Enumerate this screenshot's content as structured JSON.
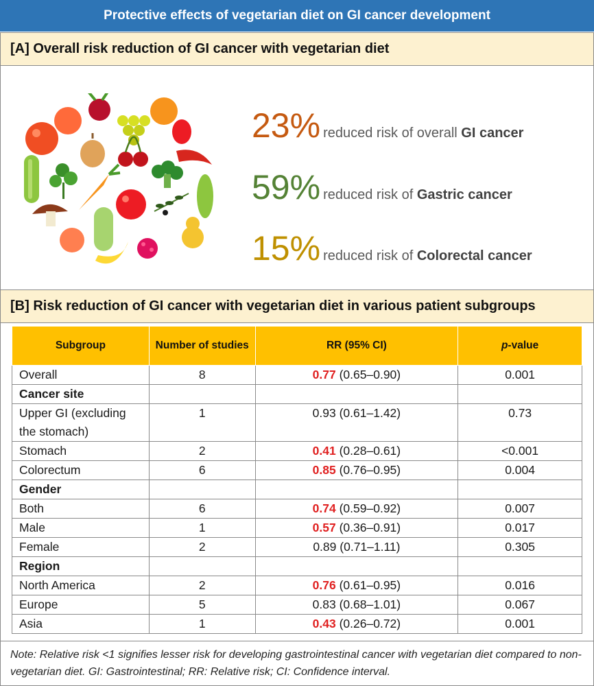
{
  "title": "Protective effects of vegetarian diet on GI cancer development",
  "section_a": {
    "heading": "[A] Overall risk reduction of GI cancer with vegetarian diet",
    "illustration_icon": "vegetables-fruits-illustration",
    "stats": [
      {
        "percent": "23%",
        "text_prefix": "reduced risk of overall ",
        "text_bold": "GI cancer",
        "color": "#c55a11"
      },
      {
        "percent": "59%",
        "text_prefix": "reduced risk of ",
        "text_bold": "Gastric cancer",
        "color": "#548235"
      },
      {
        "percent": "15%",
        "text_prefix": "reduced risk of ",
        "text_bold": "Colorectal cancer",
        "color": "#bf9000"
      }
    ]
  },
  "section_b": {
    "heading": "[B] Risk reduction of GI cancer with vegetarian diet in various patient subgroups",
    "columns": {
      "subgroup": "Subgroup",
      "studies": "Number of studies",
      "rr": "RR (95% CI)",
      "p_italic": "p",
      "p_rest": "-value"
    },
    "rows": [
      {
        "subgroup": "Overall",
        "studies": "8",
        "rr": "0.77",
        "ci": "(0.65–0.90)",
        "p": "0.001",
        "sig": true
      },
      {
        "group": "Cancer site"
      },
      {
        "subgroup": "Upper GI (excluding the stomach)",
        "studies": "1",
        "rr": "0.93",
        "ci": "(0.61–1.42)",
        "p": "0.73",
        "sig": false
      },
      {
        "subgroup": "Stomach",
        "studies": "2",
        "rr": "0.41",
        "ci": "(0.28–0.61)",
        "p": "<0.001",
        "sig": true
      },
      {
        "subgroup": "Colorectum",
        "studies": "6",
        "rr": "0.85",
        "ci": "(0.76–0.95)",
        "p": "0.004",
        "sig": true
      },
      {
        "group": "Gender"
      },
      {
        "subgroup": "Both",
        "studies": "6",
        "rr": "0.74",
        "ci": "(0.59–0.92)",
        "p": "0.007",
        "sig": true
      },
      {
        "subgroup": "Male",
        "studies": "1",
        "rr": "0.57",
        "ci": "(0.36–0.91)",
        "p": "0.017",
        "sig": true
      },
      {
        "subgroup": "Female",
        "studies": "2",
        "rr": "0.89",
        "ci": "(0.71–1.11)",
        "p": "0.305",
        "sig": false
      },
      {
        "group": "Region"
      },
      {
        "subgroup": "North America",
        "studies": "2",
        "rr": "0.76",
        "ci": "(0.61–0.95)",
        "p": "0.016",
        "sig": true
      },
      {
        "subgroup": "Europe",
        "studies": "5",
        "rr": "0.83",
        "ci": "(0.68–1.01)",
        "p": "0.067",
        "sig": false
      },
      {
        "subgroup": "Asia",
        "studies": "1",
        "rr": "0.43",
        "ci": "(0.26–0.72)",
        "p": "0.001",
        "sig": true
      }
    ],
    "significant_color": "#e02020",
    "header_color": "#ffc000"
  },
  "note": "Note: Relative risk <1 signifies lesser risk for developing gastrointestinal cancer with vegetarian diet compared to non-vegetarian diet. GI: Gastrointestinal; RR: Relative risk; CI: Confidence interval."
}
